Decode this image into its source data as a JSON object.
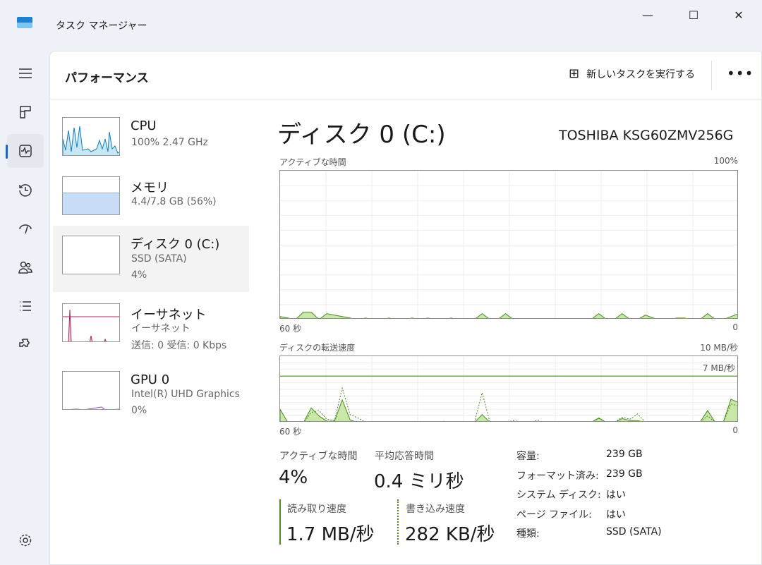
{
  "window": {
    "title": "タスク マネージャー",
    "minimize": "—",
    "maximize": "☐",
    "close": "✕"
  },
  "header": {
    "title": "パフォーマンス",
    "new_task": "新しいタスクを実行する",
    "more": "•••"
  },
  "nav": [
    "menu",
    "processes",
    "performance",
    "history",
    "startup",
    "users",
    "details",
    "services",
    "settings"
  ],
  "resources": [
    {
      "name": "CPU",
      "sub1": "100%  2.47 GHz",
      "sub2": ""
    },
    {
      "name": "メモリ",
      "sub1": "4.4/7.8 GB (56%)",
      "sub2": ""
    },
    {
      "name": "ディスク 0 (C:)",
      "sub1": "SSD (SATA)",
      "sub2": "4%"
    },
    {
      "name": "イーサネット",
      "sub1": "イーサネット",
      "sub2": "送信: 0  受信: 0 Kbps"
    },
    {
      "name": "GPU 0",
      "sub1": "Intel(R) UHD Graphics",
      "sub2": "0%"
    }
  ],
  "main": {
    "title": "ディスク 0 (C:)",
    "model": "TOSHIBA KSG60ZMV256G",
    "chart1": {
      "label": "アクティブな時間",
      "max": "100%",
      "xleft": "60 秒",
      "xright": "0"
    },
    "chart2": {
      "label": "ディスクの転送速度",
      "max": "10 MB/秒",
      "line_label": "7 MB/秒",
      "xleft": "60 秒",
      "xright": "0"
    },
    "stats": {
      "active_label": "アクティブな時間",
      "active": "4%",
      "resp_label": "平均応答時間",
      "resp": "0.4 ミリ秒",
      "read_label": "読み取り速度",
      "read": "1.7 MB/秒",
      "write_label": "書き込み速度",
      "write": "282 KB/秒"
    },
    "props": [
      [
        "容量:",
        "239 GB"
      ],
      [
        "フォーマット済み:",
        "239 GB"
      ],
      [
        "システム ディスク:",
        "はい"
      ],
      [
        "ページ ファイル:",
        "はい"
      ],
      [
        "種類:",
        "SSD (SATA)"
      ]
    ]
  },
  "colors": {
    "disk": "#4d8a1e",
    "disk_fill": "#c9e7a8",
    "cpu": "#117dbb",
    "mem": "#8bb4e8",
    "net": "#a7275f",
    "accent": "#1d64c0"
  },
  "chart_data": [
    {
      "type": "area",
      "name": "アクティブな時間",
      "ylim": [
        0,
        100
      ],
      "values": [
        2,
        1,
        0,
        5,
        5,
        0,
        4,
        3,
        2,
        1,
        0,
        1,
        0,
        0,
        1,
        0,
        0,
        1,
        0,
        1,
        0,
        0,
        1,
        0,
        0,
        0,
        4,
        0,
        0,
        4,
        0,
        0,
        0,
        0,
        0,
        0,
        0,
        0,
        0,
        0,
        0,
        4,
        0,
        0,
        4,
        0,
        0,
        3,
        1,
        0,
        0,
        1,
        1,
        0,
        0,
        4,
        0,
        0,
        2,
        4
      ]
    },
    {
      "type": "area",
      "name": "ディスクの転送速度",
      "ylim": [
        0,
        10
      ],
      "reference_line": 7,
      "series": [
        {
          "values": [
            2,
            0,
            0,
            0,
            2.2,
            1,
            0.2,
            0.2,
            3.4,
            0.4,
            0,
            0,
            0,
            0,
            0,
            0,
            0,
            0,
            0,
            0,
            0,
            0.1,
            0,
            0,
            0,
            0,
            1.2,
            0,
            0,
            0,
            0,
            0,
            0,
            0.1,
            0,
            0,
            0,
            0,
            0,
            0,
            0,
            0.7,
            0,
            0,
            0.6,
            0.3,
            0.3,
            0,
            0,
            0,
            0,
            0,
            0,
            0,
            0,
            1.8,
            0,
            0,
            3.5,
            3
          ]
        },
        {
          "values": [
            0,
            0,
            0,
            0,
            1.5,
            1.8,
            0.5,
            0.3,
            5.2,
            1.2,
            0.7,
            0,
            0,
            0,
            0,
            0,
            0,
            0,
            0,
            0,
            0,
            0.2,
            0,
            0,
            0,
            0,
            4.5,
            0,
            0,
            0,
            0.3,
            0,
            0,
            0.3,
            0,
            0,
            0,
            0,
            0,
            0,
            0,
            0.6,
            0,
            0,
            0.8,
            0.5,
            1.3,
            0,
            0,
            0,
            0,
            0,
            0,
            0,
            0,
            1,
            0,
            0,
            2.8,
            2.5
          ],
          "style": "dashed"
        }
      ]
    }
  ]
}
